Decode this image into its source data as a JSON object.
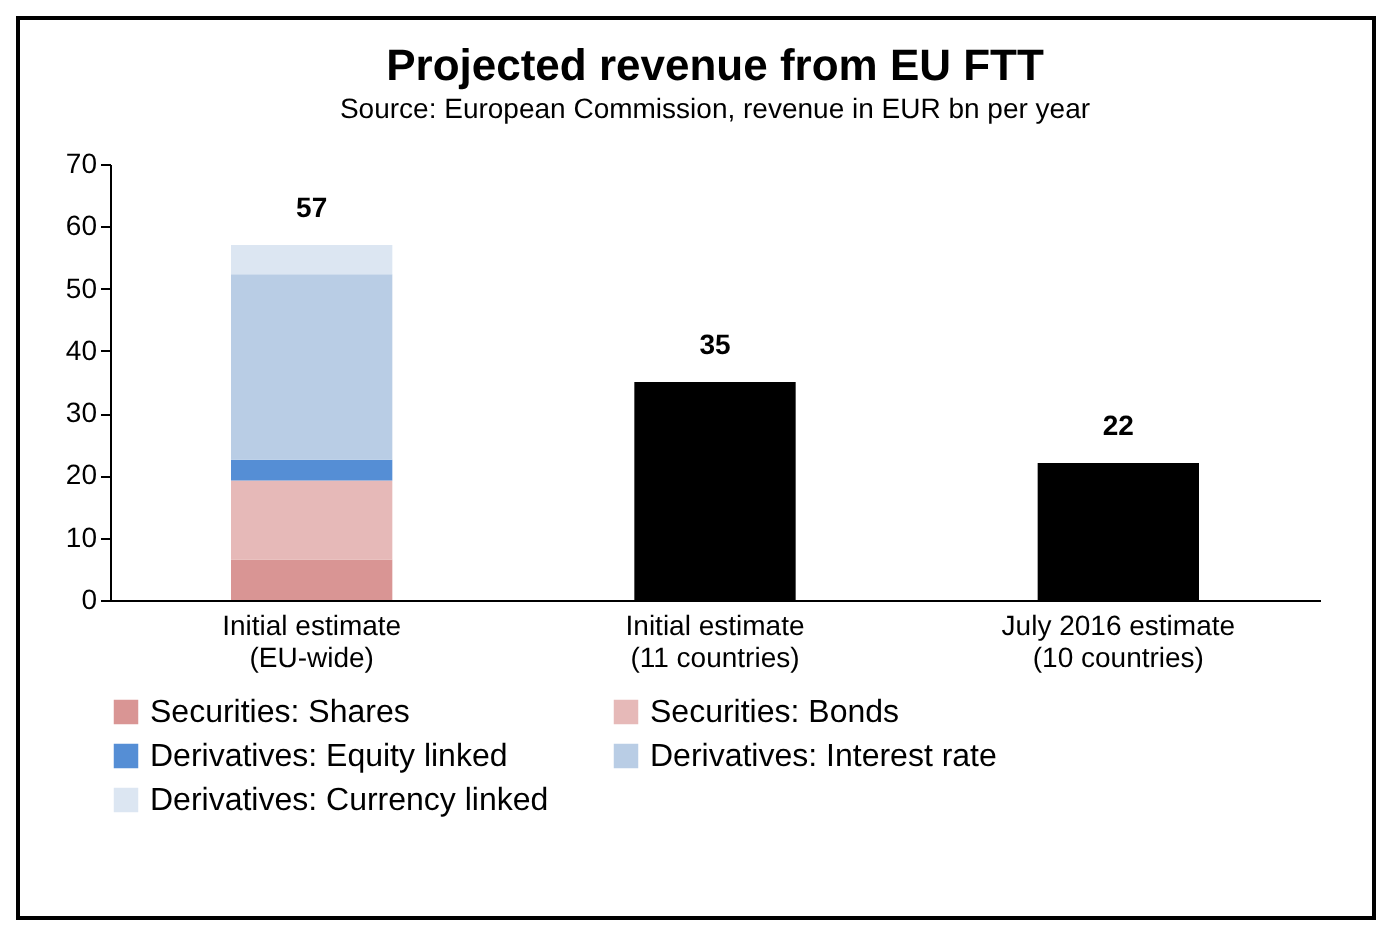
{
  "chart_data": {
    "type": "bar",
    "stacked": true,
    "title": "Projected revenue from EU FTT",
    "subtitle": "Source: European Commission, revenue in EUR bn per year",
    "categories": [
      "Initial estimate\n(EU-wide)",
      "Initial estimate\n(11 countries)",
      "July 2016 estimate\n(10 countries)"
    ],
    "series": [
      {
        "name": "Securities: Shares",
        "color": "#d99594",
        "values": [
          6.5,
          null,
          null
        ]
      },
      {
        "name": "Securities: Bonds",
        "color": "#e6b9b8",
        "values": [
          12.7,
          null,
          null
        ]
      },
      {
        "name": "Derivatives: Equity linked",
        "color": "#558ed5",
        "values": [
          3.3,
          null,
          null
        ]
      },
      {
        "name": "Derivatives: Interest rate",
        "color": "#b9cde5",
        "values": [
          29.8,
          null,
          null
        ]
      },
      {
        "name": "Derivatives: Currency linked",
        "color": "#dce6f2",
        "values": [
          4.7,
          null,
          null
        ]
      },
      {
        "color": "#000000",
        "values": [
          null,
          35,
          22
        ]
      }
    ],
    "totals": [
      "57",
      "35",
      "22"
    ],
    "ylim": [
      0,
      70
    ],
    "yticks": [
      0,
      10,
      20,
      30,
      40,
      50,
      60,
      70
    ],
    "grid": false,
    "legend": "bottom"
  }
}
